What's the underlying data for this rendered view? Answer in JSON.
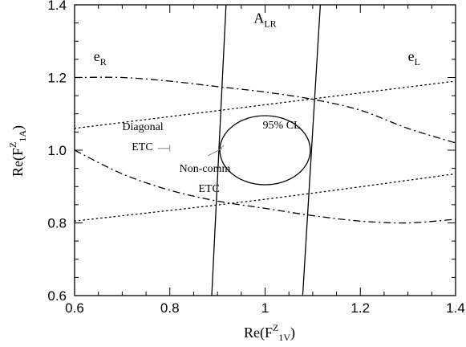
{
  "chart_data": {
    "type": "line",
    "xlim": [
      0.6,
      1.4
    ],
    "ylim": [
      0.6,
      1.4
    ],
    "x_ticks": [
      "0.6",
      "0.8",
      "1",
      "1.2",
      "1.4"
    ],
    "y_ticks": [
      "0.6",
      "0.8",
      "1.0",
      "1.2",
      "1.4"
    ],
    "xlabel": {
      "main": "Re(F",
      "sup": "Z",
      "sub": "1V",
      "close": ")"
    },
    "ylabel": {
      "main": "Re(F",
      "sup": "Z",
      "sub": "1A",
      "close": ")"
    },
    "grid": false,
    "series": [
      {
        "name": "A_LR",
        "style": "solid",
        "x": [
          0.888,
          0.918
        ],
        "y": [
          0.6,
          1.4
        ]
      },
      {
        "name": "A_LR",
        "style": "solid",
        "x": [
          1.079,
          1.116
        ],
        "y": [
          0.6,
          1.4
        ]
      },
      {
        "name": "e_R",
        "style": "dash-dot",
        "x": [
          0.6,
          0.7,
          0.8,
          0.9,
          1.0,
          1.1,
          1.2,
          1.3,
          1.4
        ],
        "y": [
          1.2,
          1.2,
          1.19,
          1.175,
          1.16,
          1.14,
          1.11,
          1.06,
          1.02
        ]
      },
      {
        "name": "e_R",
        "style": "dash-dot",
        "x": [
          0.6,
          0.7,
          0.8,
          0.9,
          1.0,
          1.1,
          1.2,
          1.3,
          1.4
        ],
        "y": [
          1.0,
          0.935,
          0.89,
          0.86,
          0.84,
          0.82,
          0.805,
          0.8,
          0.81
        ]
      },
      {
        "name": "e_L",
        "style": "dotted",
        "x": [
          0.6,
          1.0,
          1.4
        ],
        "y": [
          1.06,
          1.125,
          1.19
        ]
      },
      {
        "name": "e_L",
        "style": "dotted",
        "x": [
          0.6,
          1.0,
          1.4
        ],
        "y": [
          0.805,
          0.865,
          0.935
        ]
      }
    ],
    "ellipse": {
      "label": "95% CL",
      "cx": 1.0,
      "cy": 1.0,
      "rx": 0.095,
      "ry": 0.095
    },
    "annotations": [
      {
        "id": "alr",
        "base": "A",
        "sub": "LR",
        "x": 1.0,
        "y": 1.35
      },
      {
        "id": "er",
        "base": "e",
        "sub": "R",
        "x": 0.64,
        "y": 1.245
      },
      {
        "id": "el",
        "base": "e",
        "sub": "L",
        "x": 1.3,
        "y": 1.245
      },
      {
        "id": "cl",
        "text": "95% CL",
        "x": 0.995,
        "y": 1.06
      },
      {
        "id": "diag1",
        "text": "Diagonal",
        "x": 0.7,
        "y": 1.055
      },
      {
        "id": "diag2",
        "text": "ETC",
        "x": 0.72,
        "y": 1.0
      },
      {
        "id": "nc1",
        "text": "Non-comm",
        "x": 0.82,
        "y": 0.94
      },
      {
        "id": "nc2",
        "text": "ETC",
        "x": 0.86,
        "y": 0.885
      }
    ],
    "markers": [
      {
        "id": "diag-bar",
        "x1": 0.775,
        "x2": 0.8,
        "y": 1.005
      },
      {
        "id": "nc-bar",
        "x1": 0.88,
        "x2": 0.91,
        "y1": 0.985,
        "y2": 1.005
      }
    ]
  }
}
